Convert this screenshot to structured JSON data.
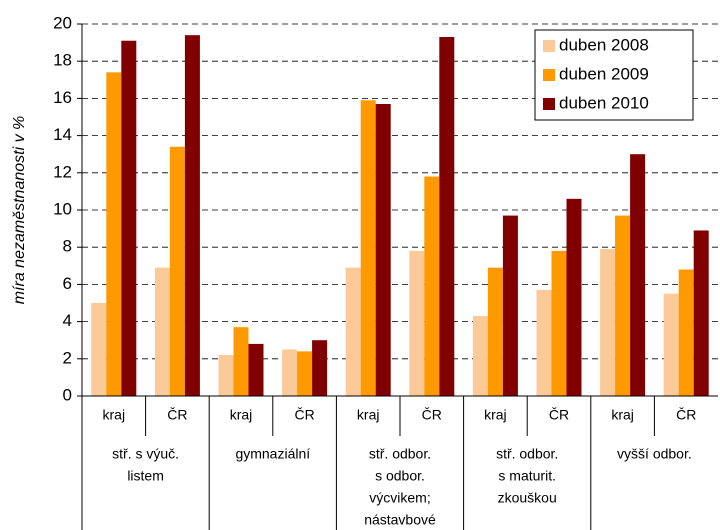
{
  "chart_data": {
    "type": "bar",
    "y_label": "míra nezaměstnanosti v %",
    "categories": [
      "kraj",
      "ČR",
      "kraj",
      "ČR",
      "kraj",
      "ČR",
      "kraj",
      "ČR",
      "kraj",
      "ČR"
    ],
    "groups": [
      [
        "stř. s výuč.",
        "listem"
      ],
      [
        "gymnaziální"
      ],
      [
        "stř. odbor.",
        "s odbor.",
        "výcvikem;",
        "nástavbové"
      ],
      [
        "stř. odbor.",
        "s maturit.",
        "zkouškou"
      ],
      [
        "vyšší odbor."
      ]
    ],
    "series": [
      {
        "name": "duben 2008",
        "color": "#fcc998",
        "values": [
          5.0,
          6.9,
          2.2,
          2.5,
          6.9,
          7.8,
          4.3,
          5.7,
          7.9,
          5.5
        ]
      },
      {
        "name": "duben 2009",
        "color": "#ff9900",
        "values": [
          17.4,
          13.4,
          3.7,
          2.4,
          15.9,
          11.8,
          6.9,
          7.8,
          9.7,
          6.8
        ]
      },
      {
        "name": "duben 2010",
        "color": "#800000",
        "values": [
          19.1,
          19.4,
          2.8,
          3.0,
          15.7,
          19.3,
          9.7,
          10.6,
          13.0,
          8.9
        ]
      }
    ],
    "ylim": [
      0,
      20
    ],
    "yticks": [
      0,
      2,
      4,
      6,
      8,
      10,
      12,
      14,
      16,
      18,
      20
    ],
    "grid": true,
    "legend": "top-right"
  }
}
